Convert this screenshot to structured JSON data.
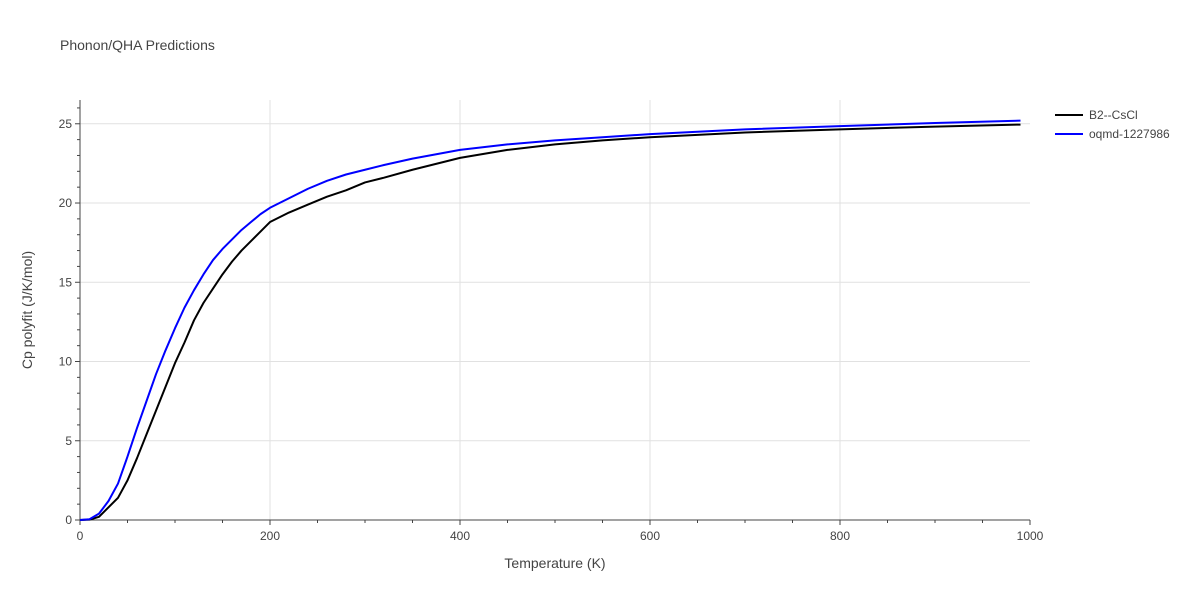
{
  "chart_data": {
    "type": "line",
    "title": "Phonon/QHA Predictions",
    "xlabel": "Temperature (K)",
    "ylabel": "Cp polyfit (J/K/mol)",
    "xlim": [
      0,
      1000
    ],
    "ylim": [
      0,
      26.5
    ],
    "xticks": [
      0,
      200,
      400,
      600,
      800,
      1000
    ],
    "yticks": [
      0,
      5,
      10,
      15,
      20,
      25
    ],
    "grid": true,
    "legend_position": "top-right",
    "series": [
      {
        "name": "B2--CsCl",
        "color": "#000000",
        "x": [
          0,
          10,
          20,
          30,
          40,
          50,
          60,
          70,
          80,
          90,
          100,
          110,
          120,
          130,
          140,
          150,
          160,
          170,
          180,
          190,
          200,
          220,
          240,
          260,
          280,
          300,
          320,
          350,
          400,
          450,
          500,
          550,
          600,
          650,
          700,
          800,
          900,
          990
        ],
        "y": [
          0,
          0.02,
          0.2,
          0.8,
          1.4,
          2.5,
          3.9,
          5.4,
          6.9,
          8.4,
          9.9,
          11.2,
          12.6,
          13.7,
          14.6,
          15.5,
          16.3,
          17.0,
          17.6,
          18.2,
          18.8,
          19.4,
          19.9,
          20.4,
          20.8,
          21.3,
          21.6,
          22.1,
          22.85,
          23.35,
          23.7,
          23.95,
          24.15,
          24.3,
          24.45,
          24.65,
          24.82,
          24.95
        ]
      },
      {
        "name": "oqmd-1227986",
        "color": "#0000ff",
        "x": [
          0,
          10,
          20,
          30,
          40,
          50,
          60,
          70,
          80,
          90,
          100,
          110,
          120,
          130,
          140,
          150,
          160,
          170,
          180,
          190,
          200,
          220,
          240,
          260,
          280,
          300,
          320,
          350,
          400,
          450,
          500,
          550,
          600,
          650,
          700,
          800,
          900,
          990
        ],
        "y": [
          0,
          0.05,
          0.4,
          1.2,
          2.3,
          4.0,
          5.8,
          7.5,
          9.2,
          10.7,
          12.1,
          13.4,
          14.5,
          15.5,
          16.4,
          17.1,
          17.7,
          18.3,
          18.8,
          19.3,
          19.7,
          20.3,
          20.9,
          21.4,
          21.8,
          22.1,
          22.4,
          22.8,
          23.35,
          23.7,
          23.95,
          24.15,
          24.35,
          24.5,
          24.65,
          24.85,
          25.05,
          25.2
        ]
      }
    ]
  }
}
